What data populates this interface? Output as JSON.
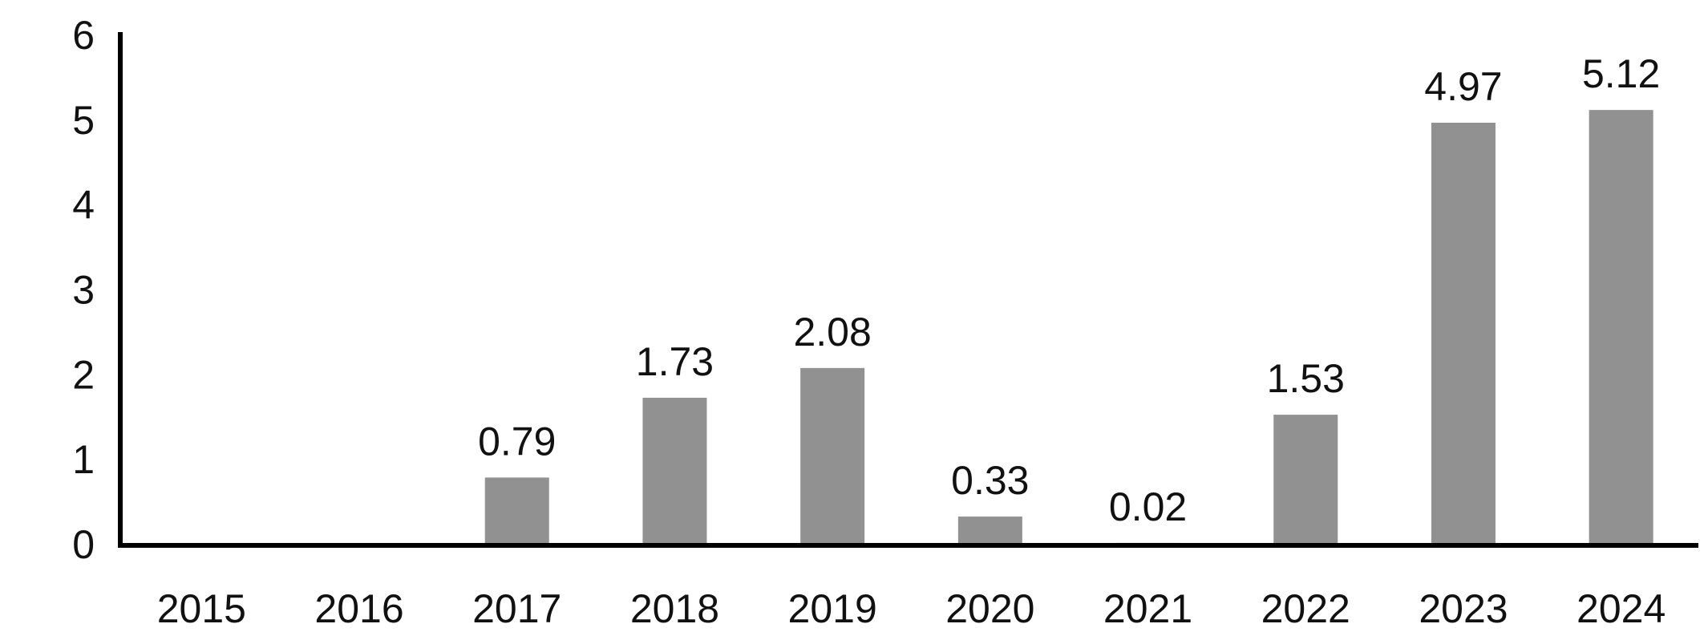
{
  "chart_data": {
    "type": "bar",
    "title": "",
    "xlabel": "",
    "ylabel": "",
    "categories": [
      "2015",
      "2016",
      "2017",
      "2018",
      "2019",
      "2020",
      "2021",
      "2022",
      "2023",
      "2024"
    ],
    "values": [
      0,
      0,
      0.79,
      1.73,
      2.08,
      0.33,
      0.02,
      1.53,
      4.97,
      5.12
    ],
    "data_labels": [
      "",
      "",
      "0.79",
      "1.73",
      "2.08",
      "0.33",
      "0.02",
      "1.53",
      "4.97",
      "5.12"
    ],
    "ylim": [
      0,
      6
    ],
    "yticks": [
      "0",
      "1",
      "2",
      "3",
      "4",
      "5",
      "6"
    ],
    "grid": false,
    "legend": "none",
    "colors": {
      "bar": "#919191",
      "axis": "#000000",
      "text": "#111111"
    }
  }
}
